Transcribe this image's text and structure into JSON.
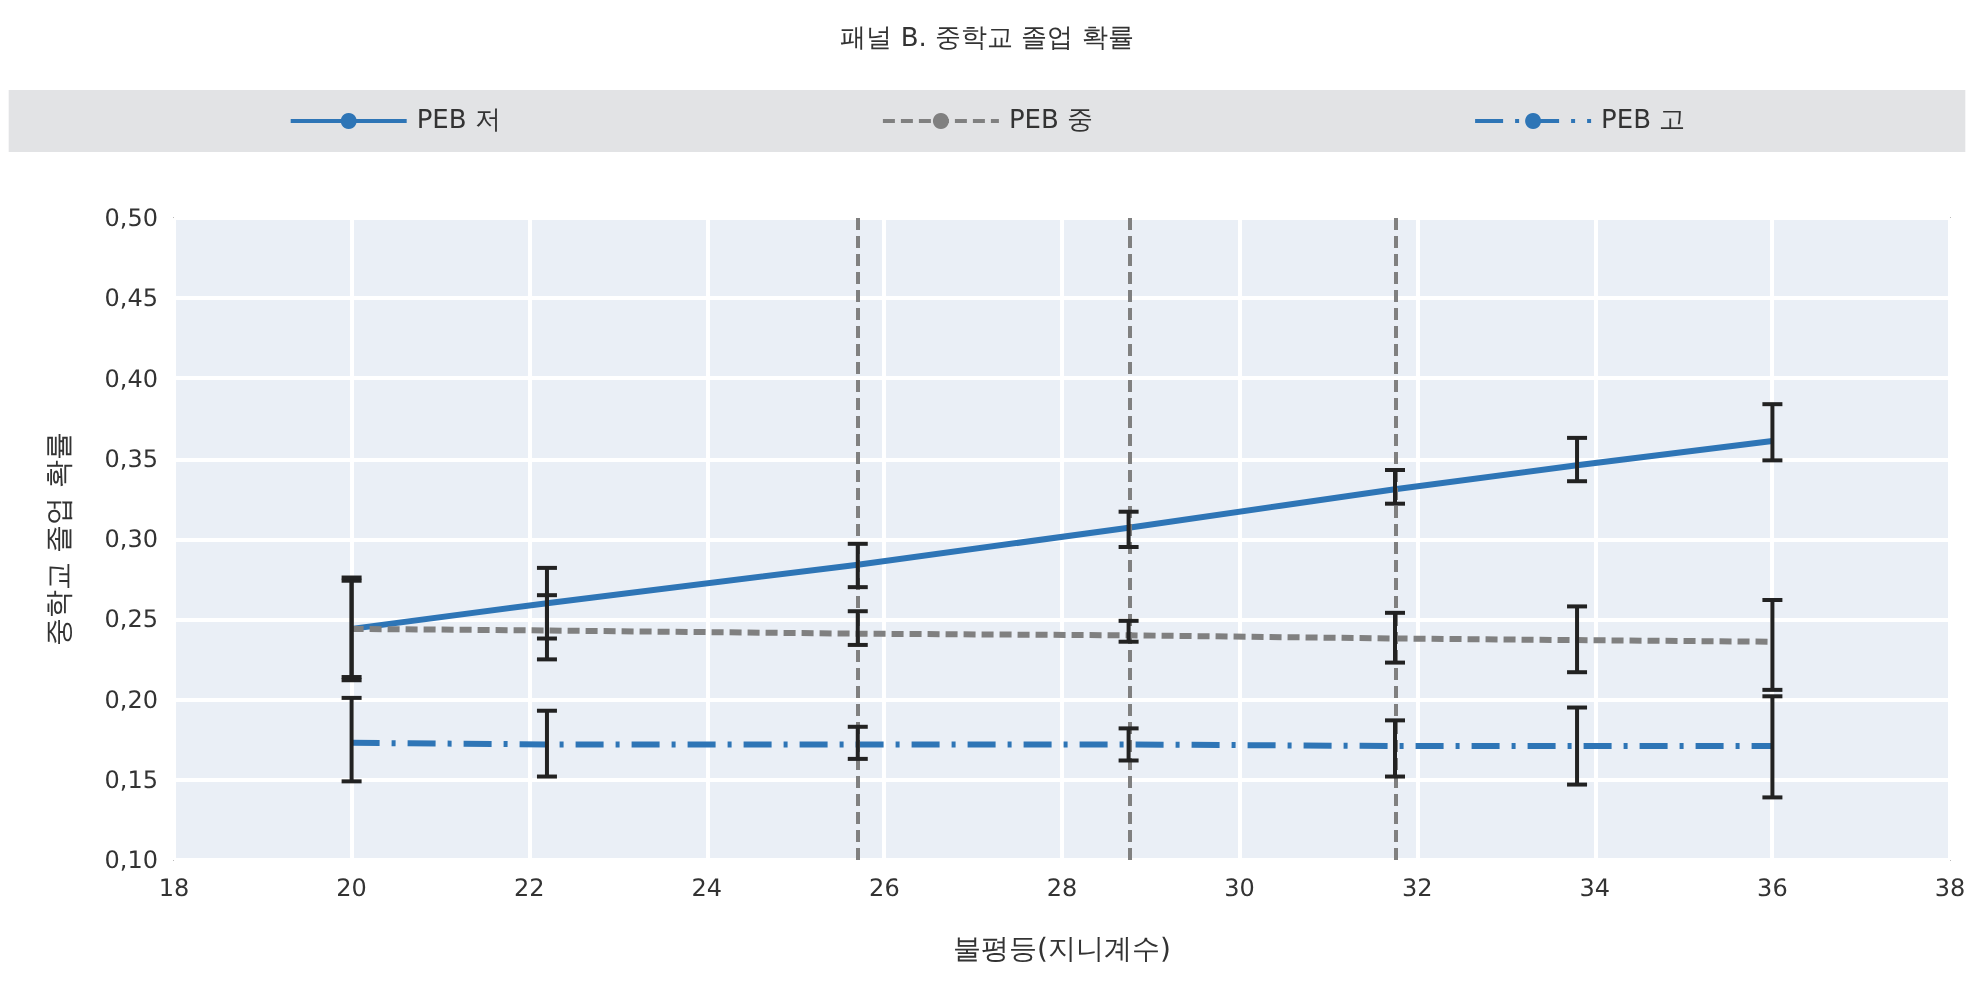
{
  "chart_data": {
    "type": "line",
    "title": "패널 B. 중학교 졸업 확률",
    "xlabel": "불평등(지니계수)",
    "ylabel": "중학교 졸업 확률",
    "x": [
      20,
      22.2,
      25.7,
      28.75,
      31.75,
      33.8,
      36
    ],
    "series": [
      {
        "name": "PEB 저",
        "color": "#2e75b6",
        "line_style": "solid",
        "values": [
          0.244,
          0.26,
          0.284,
          0.307,
          0.331,
          0.346,
          0.361
        ],
        "errors": [
          [
            0.214,
            0.274
          ],
          [
            0.238,
            0.282
          ],
          [
            0.27,
            0.297
          ],
          [
            0.295,
            0.317
          ],
          [
            0.322,
            0.343
          ],
          [
            0.336,
            0.363
          ],
          [
            0.349,
            0.384
          ]
        ]
      },
      {
        "name": "PEB 중",
        "color": "#808080",
        "line_style": "dashed",
        "values": [
          0.244,
          0.243,
          0.241,
          0.24,
          0.238,
          0.237,
          0.236
        ],
        "errors": [
          [
            0.212,
            0.276
          ],
          [
            0.225,
            0.265
          ],
          [
            0.234,
            0.255
          ],
          [
            0.236,
            0.249
          ],
          [
            0.223,
            0.254
          ],
          [
            0.217,
            0.258
          ],
          [
            0.206,
            0.262
          ]
        ]
      },
      {
        "name": "PEB 고",
        "color": "#2e75b6",
        "line_style": "dashdot",
        "values": [
          0.173,
          0.172,
          0.172,
          0.172,
          0.171,
          0.171,
          0.171
        ],
        "errors": [
          [
            0.149,
            0.201
          ],
          [
            0.152,
            0.193
          ],
          [
            0.163,
            0.183
          ],
          [
            0.162,
            0.182
          ],
          [
            0.152,
            0.187
          ],
          [
            0.147,
            0.195
          ],
          [
            0.139,
            0.202
          ]
        ]
      }
    ],
    "xlim": [
      18,
      38
    ],
    "xticks": [
      18,
      20,
      22,
      24,
      26,
      28,
      30,
      32,
      34,
      36,
      38
    ],
    "ylim": [
      0.1,
      0.5
    ],
    "yticks": [
      {
        "value": 0.1,
        "label": "0,10"
      },
      {
        "value": 0.15,
        "label": "0,15"
      },
      {
        "value": 0.2,
        "label": "0,20"
      },
      {
        "value": 0.25,
        "label": "0,25"
      },
      {
        "value": 0.3,
        "label": "0,30"
      },
      {
        "value": 0.35,
        "label": "0,35"
      },
      {
        "value": 0.4,
        "label": "0,40"
      },
      {
        "value": 0.45,
        "label": "0,45"
      },
      {
        "value": 0.5,
        "label": "0,50"
      }
    ],
    "ref_lines": [
      {
        "axis": "x",
        "value": 25.7,
        "color": "#808080",
        "line_style": "dashed"
      },
      {
        "axis": "x",
        "value": 28.75,
        "color": "#808080",
        "line_style": "dashed"
      },
      {
        "axis": "x",
        "value": 31.75,
        "color": "#808080",
        "line_style": "dashed"
      }
    ],
    "grid": true,
    "legend": "top",
    "marker": "none"
  }
}
